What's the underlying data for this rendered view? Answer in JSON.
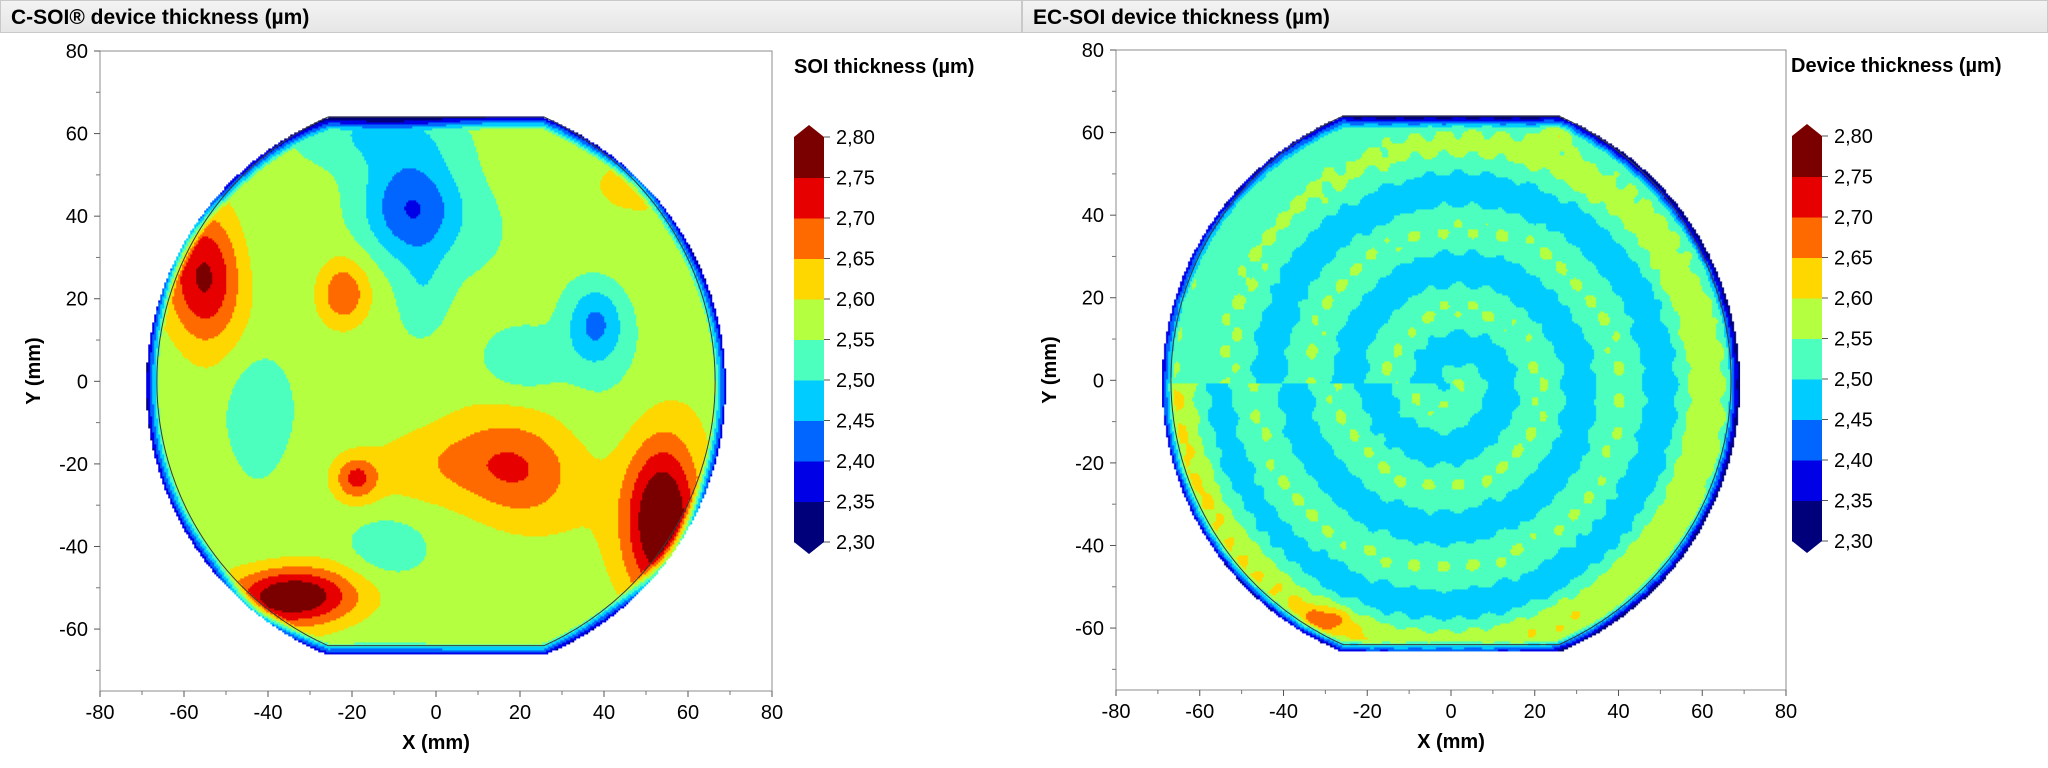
{
  "panels": {
    "left": {
      "title": "C-SOI® device thickness (µm)"
    },
    "right": {
      "title": "EC-SOI device thickness (µm)"
    }
  },
  "colors": {
    "scale": [
      "#00007a",
      "#0000e6",
      "#0066ff",
      "#00ccff",
      "#4dffbf",
      "#b3ff40",
      "#ffd700",
      "#ff6a00",
      "#e60000",
      "#7a0000"
    ]
  },
  "chart_data": [
    {
      "type": "heatmap",
      "title": "C-SOI® device thickness (µm)",
      "xlabel": "X (mm)",
      "ylabel": "Y (mm)",
      "xlim": [
        -80,
        80
      ],
      "ylim": [
        -75,
        80
      ],
      "xticks": [
        "-80",
        "-60",
        "-40",
        "-20",
        "0",
        "20",
        "40",
        "60",
        "80"
      ],
      "yticks": [
        "-60",
        "-40",
        "-20",
        "0",
        "20",
        "40",
        "60",
        "80"
      ],
      "wafer_radius_mm": 69,
      "flat_abs_y_mm": 64,
      "colorbar": {
        "title": "SOI thickness (µm)",
        "levels": [
          "2,30",
          "2,35",
          "2,40",
          "2,45",
          "2,50",
          "2,55",
          "2,60",
          "2,65",
          "2,70",
          "2,75",
          "2,80"
        ]
      },
      "base_value": 2.57,
      "features": [
        {
          "x": -6,
          "y": 42,
          "sx": 12,
          "sy": 13,
          "a": -0.18
        },
        {
          "x": -14,
          "y": 60,
          "sx": 22,
          "sy": 8,
          "a": -0.06
        },
        {
          "x": -55,
          "y": 26,
          "sx": 9,
          "sy": 16,
          "a": 0.19
        },
        {
          "x": 52,
          "y": 49,
          "sx": 14,
          "sy": 7,
          "a": 0.06
        },
        {
          "x": 38,
          "y": 15,
          "sx": 7,
          "sy": 10,
          "a": -0.13
        },
        {
          "x": 54,
          "y": -32,
          "sx": 9,
          "sy": 20,
          "a": 0.25
        },
        {
          "x": -34,
          "y": -50,
          "sx": 15,
          "sy": 7,
          "a": 0.24
        },
        {
          "x": 20,
          "y": -22,
          "sx": 14,
          "sy": 14,
          "a": 0.1
        },
        {
          "x": -22,
          "y": 22,
          "sx": 6,
          "sy": 8,
          "a": 0.12
        },
        {
          "x": -42,
          "y": -5,
          "sx": 8,
          "sy": 13,
          "a": -0.08
        },
        {
          "x": -19,
          "y": -22,
          "sx": 5,
          "sy": 5,
          "a": 0.13
        },
        {
          "x": -12,
          "y": -38,
          "sx": 10,
          "sy": 8,
          "a": -0.07
        },
        {
          "x": 20,
          "y": 6,
          "sx": 10,
          "sy": 8,
          "a": -0.07
        },
        {
          "x": -3,
          "y": 22,
          "sx": 6,
          "sy": 10,
          "a": -0.05
        },
        {
          "x": 5,
          "y": -18,
          "sx": 22,
          "sy": 10,
          "a": 0.07
        }
      ],
      "edge_drop": 0.22
    },
    {
      "type": "heatmap",
      "title": "EC-SOI device thickness (µm)",
      "xlabel": "X (mm)",
      "ylabel": "Y (mm)",
      "xlim": [
        -80,
        80
      ],
      "ylim": [
        -75,
        80
      ],
      "xticks": [
        "-80",
        "-60",
        "-40",
        "-20",
        "0",
        "20",
        "40",
        "60",
        "80"
      ],
      "yticks": [
        "-60",
        "-40",
        "-20",
        "0",
        "20",
        "40",
        "60",
        "80"
      ],
      "wafer_radius_mm": 69,
      "flat_abs_y_mm": 64,
      "colorbar": {
        "title": "Device thickness (µm)",
        "levels": [
          "2,30",
          "2,35",
          "2,40",
          "2,45",
          "2,50",
          "2,55",
          "2,60",
          "2,65",
          "2,70",
          "2,75",
          "2,80"
        ]
      },
      "rings": {
        "center_value": 2.51,
        "ring_amplitude": 0.038,
        "ring_period_mm": 19,
        "outer_rise": 0.055,
        "outer_start_mm": 54
      },
      "spots": [
        {
          "x": -30,
          "y": -56,
          "sx": 6,
          "sy": 3,
          "a": 0.09
        },
        {
          "x": 26,
          "y": 60,
          "sx": 4,
          "sy": 3,
          "a": 0.06
        }
      ],
      "edge_drop": 0.22
    }
  ]
}
